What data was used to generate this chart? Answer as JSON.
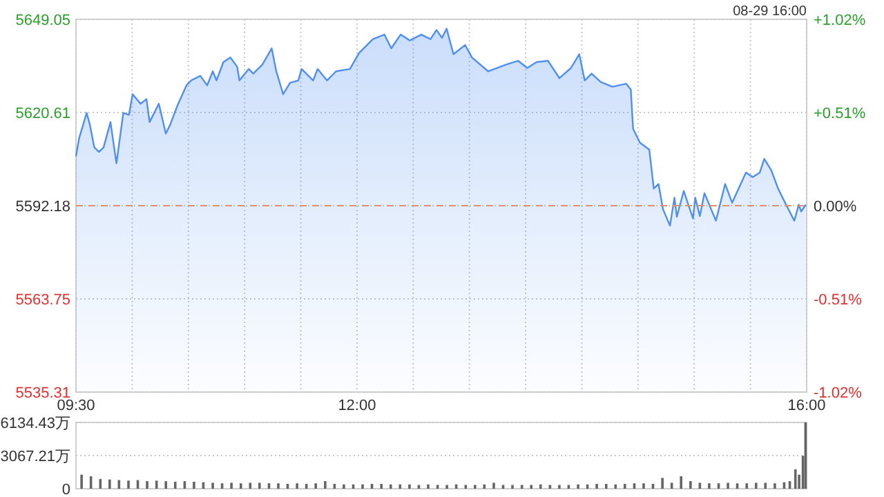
{
  "chart_data": [
    {
      "type": "area",
      "color": "#4f8ff0",
      "x": [
        9.5,
        9.528,
        9.595,
        9.623,
        9.663,
        9.705,
        9.746,
        9.807,
        9.86,
        9.921,
        9.971,
        10.004,
        10.074,
        10.127,
        10.155,
        10.237,
        10.299,
        10.339,
        10.401,
        10.483,
        10.524,
        10.606,
        10.667,
        10.717,
        10.75,
        10.811,
        10.873,
        10.934,
        10.954,
        11.036,
        11.077,
        11.159,
        11.241,
        11.282,
        11.343,
        11.405,
        11.478,
        11.507,
        11.61,
        11.65,
        11.733,
        11.814,
        11.937,
        12.019,
        12.142,
        12.244,
        12.305,
        12.388,
        12.47,
        12.572,
        12.654,
        12.707,
        12.756,
        12.797,
        12.858,
        12.962,
        13.023,
        13.166,
        13.33,
        13.432,
        13.515,
        13.596,
        13.699,
        13.801,
        13.903,
        13.977,
        14.026,
        14.087,
        14.169,
        14.272,
        14.394,
        14.436,
        14.456,
        14.517,
        14.6,
        14.64,
        14.682,
        14.722,
        14.784,
        14.824,
        14.845,
        14.907,
        14.947,
        14.989,
        15.009,
        15.05,
        15.091,
        15.193,
        15.275,
        15.337,
        15.46,
        15.521,
        15.583,
        15.623,
        15.685,
        15.746,
        15.808,
        15.89,
        15.93,
        15.951,
        15.992
      ],
      "values": [
        5607.3,
        5612.8,
        5620.5,
        5617.0,
        5610.0,
        5608.6,
        5610.0,
        5617.7,
        5605.1,
        5620.5,
        5619.9,
        5626.2,
        5623.3,
        5624.7,
        5617.7,
        5623.3,
        5614.2,
        5617.0,
        5622.6,
        5628.9,
        5630.4,
        5631.8,
        5628.9,
        5633.2,
        5630.4,
        5636.0,
        5637.4,
        5634.6,
        5630.4,
        5633.9,
        5632.5,
        5635.3,
        5640.2,
        5633.2,
        5626.2,
        5629.7,
        5630.4,
        5633.9,
        5630.4,
        5633.9,
        5630.4,
        5633.2,
        5633.9,
        5638.8,
        5643.0,
        5644.4,
        5640.2,
        5644.4,
        5642.6,
        5644.4,
        5643.0,
        5645.8,
        5643.4,
        5646.2,
        5638.4,
        5641.2,
        5637.4,
        5633.2,
        5635.3,
        5636.4,
        5634.2,
        5636.0,
        5636.4,
        5631.1,
        5634.2,
        5638.4,
        5630.4,
        5632.5,
        5629.9,
        5628.5,
        5629.4,
        5627.6,
        5615.6,
        5611.4,
        5609.3,
        5597.4,
        5598.8,
        5591.1,
        5586.1,
        5594.6,
        5588.8,
        5596.7,
        5592.5,
        5588.3,
        5594.6,
        5589.0,
        5596.0,
        5587.6,
        5598.8,
        5593.1,
        5602.3,
        5600.9,
        5602.3,
        5606.5,
        5603.0,
        5597.4,
        5593.1,
        5587.6,
        5592.5,
        5590.4,
        5592.5
      ],
      "xlim": [
        9.5,
        16
      ],
      "xticks": [
        {
          "value": 9.5,
          "label": "09:30"
        },
        {
          "value": 10,
          "label": null
        },
        {
          "value": 10.5,
          "label": null
        },
        {
          "value": 11,
          "label": null
        },
        {
          "value": 11.5,
          "label": null
        },
        {
          "value": 12,
          "label": "12:00"
        },
        {
          "value": 12.5,
          "label": null
        },
        {
          "value": 13,
          "label": null
        },
        {
          "value": 13.5,
          "label": null
        },
        {
          "value": 14,
          "label": null
        },
        {
          "value": 14.5,
          "label": null
        },
        {
          "value": 15,
          "label": null
        },
        {
          "value": 15.5,
          "label": null
        },
        {
          "value": 16,
          "label": "16:00"
        }
      ],
      "ylim": [
        5535.31,
        5649.05
      ],
      "yticks": [
        5535.31,
        5563.75,
        5592.18,
        5620.61,
        5649.05
      ],
      "y2lim": [
        -1.02,
        1.02
      ],
      "y2ticks": [
        {
          "value": -1.02,
          "label": "-1.02%"
        },
        {
          "value": -0.51,
          "label": "-0.51%"
        },
        {
          "value": 0,
          "label": "0.00%"
        },
        {
          "value": 0.51,
          "label": "+0.51%"
        },
        {
          "value": 1.02,
          "label": "+1.02%"
        }
      ],
      "ref_lines": [
        {
          "axis": "y",
          "value": 5592.18,
          "color": "#e0906a",
          "line_style": "dashed"
        }
      ],
      "grid": true,
      "annotations": [
        "08-29 16:00"
      ]
    },
    {
      "type": "bar",
      "color": "#666666",
      "x": [
        9.55,
        9.633,
        9.717,
        9.8,
        9.883,
        9.967,
        10.05,
        10.133,
        10.217,
        10.3,
        10.383,
        10.467,
        10.55,
        10.633,
        10.717,
        10.8,
        10.883,
        10.967,
        11.05,
        11.133,
        11.217,
        11.3,
        11.383,
        11.467,
        11.55,
        11.633,
        11.717,
        11.8,
        11.883,
        11.967,
        12.05,
        12.133,
        12.217,
        12.3,
        12.383,
        12.467,
        12.55,
        12.633,
        12.717,
        12.8,
        12.883,
        12.967,
        13.05,
        13.133,
        13.217,
        13.3,
        13.383,
        13.467,
        13.55,
        13.633,
        13.717,
        13.8,
        13.883,
        13.967,
        14.05,
        14.133,
        14.217,
        14.3,
        14.383,
        14.467,
        14.55,
        14.633,
        14.717,
        14.8,
        14.883,
        14.967,
        15.05,
        15.133,
        15.217,
        15.3,
        15.383,
        15.467,
        15.55,
        15.633,
        15.717,
        15.8,
        15.85,
        15.9,
        15.933,
        15.967,
        15.99
      ],
      "values": [
        1300,
        1150,
        900,
        850,
        800,
        750,
        800,
        700,
        750,
        700,
        650,
        700,
        650,
        600,
        550,
        500,
        550,
        500,
        550,
        550,
        500,
        500,
        450,
        500,
        450,
        500,
        700,
        450,
        400,
        400,
        400,
        450,
        450,
        400,
        400,
        400,
        350,
        400,
        350,
        350,
        400,
        350,
        350,
        400,
        550,
        350,
        350,
        350,
        350,
        400,
        350,
        350,
        350,
        400,
        400,
        450,
        450,
        400,
        450,
        500,
        500,
        450,
        1000,
        550,
        1150,
        700,
        550,
        500,
        500,
        550,
        500,
        500,
        550,
        550,
        500,
        600,
        700,
        1800,
        1300,
        3050,
        6134.43
      ],
      "xlim": [
        9.5,
        16
      ],
      "ylim": [
        0,
        6134.43
      ],
      "yticks": [
        0,
        {
          "value": 3067.21,
          "label": "3067.21万"
        },
        {
          "value": 6134.43,
          "label": "6134.43万"
        }
      ],
      "grid": "y",
      "tick_labels": "y"
    }
  ]
}
